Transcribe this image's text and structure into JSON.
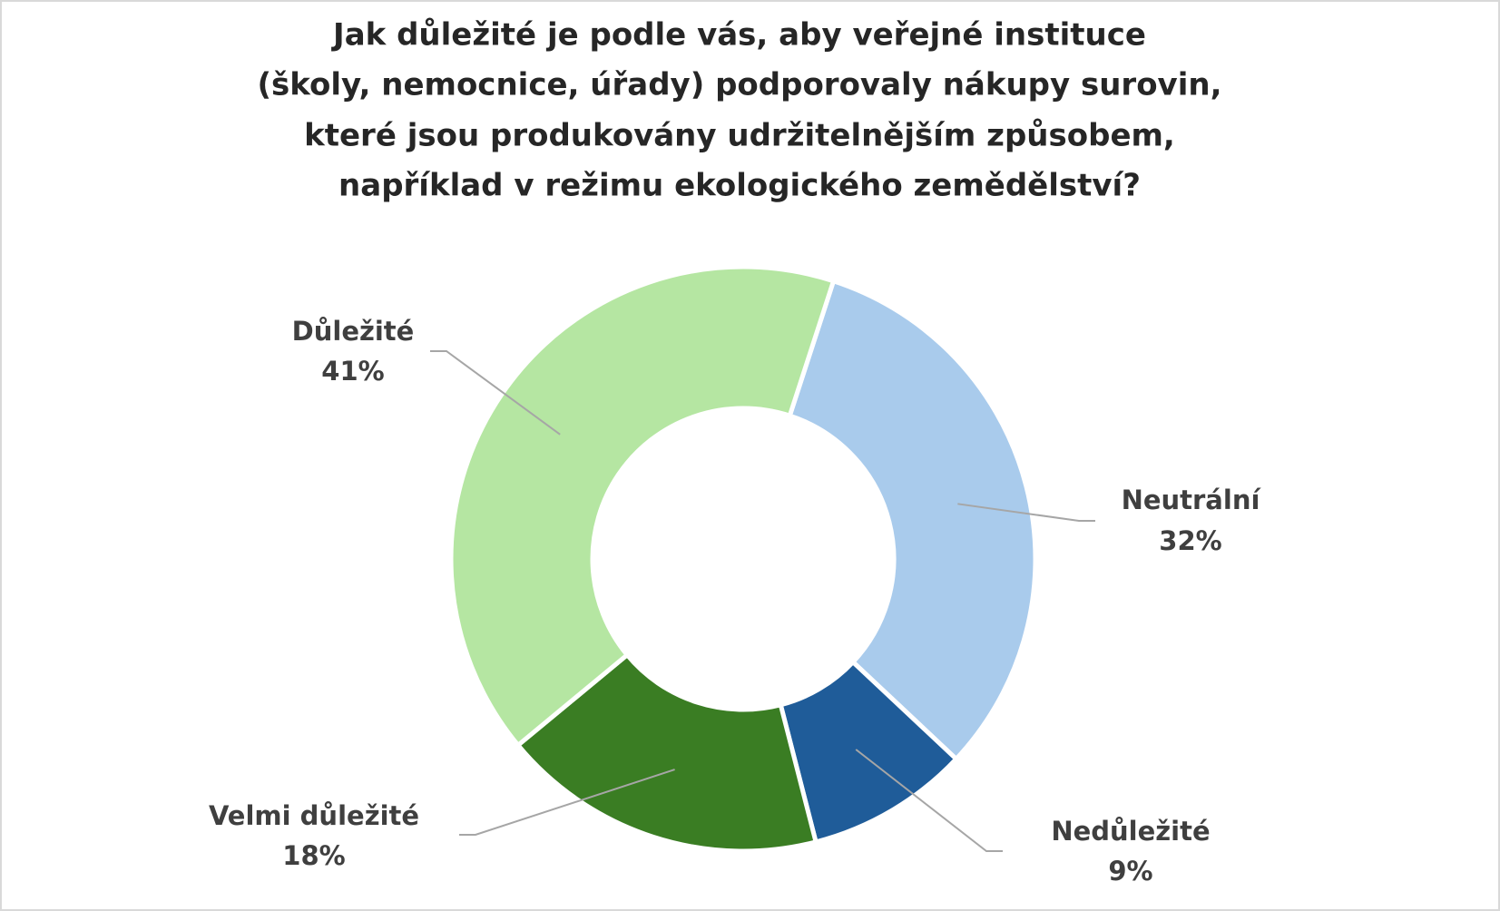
{
  "chart_data": {
    "type": "donut",
    "title": [
      "Jak důležité je podle vás, aby veřejné instituce",
      "(školy, nemocnice, úřady) podporovaly nákupy surovin,",
      "které jsou produkovány udržitelnějším způsobem,",
      "například v režimu ekologického zemědělství?"
    ],
    "categories": [
      "Neutrální",
      "Nedůležité",
      "Velmi důležité",
      "Důležité"
    ],
    "values": [
      32,
      9,
      18,
      41
    ],
    "value_labels": [
      "32%",
      "9%",
      "18%",
      "41%"
    ],
    "colors": [
      "#a9cbec",
      "#1f5c99",
      "#3a7d23",
      "#b5e6a2"
    ]
  }
}
